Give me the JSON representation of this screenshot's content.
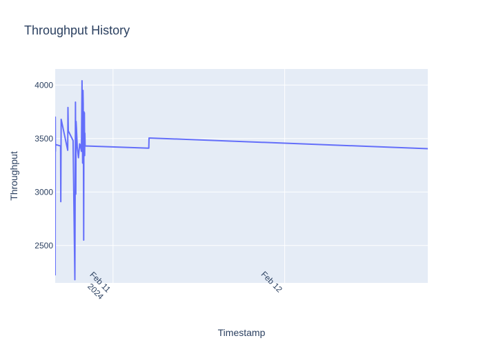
{
  "chart_data": {
    "type": "line",
    "title": "Throughput History",
    "xlabel": "Timestamp",
    "ylabel": "Throughput",
    "x_axis_type": "date",
    "xlim": [
      "2024-02-10 15:55",
      "2024-02-12 20:00"
    ],
    "ylim": [
      2150,
      4150
    ],
    "y_ticks": [
      2500,
      3000,
      3500,
      4000
    ],
    "x_ticks": [
      {
        "date": "2024-02-11 00:00",
        "label": [
          "Feb 11",
          "2024"
        ]
      },
      {
        "date": "2024-02-12 00:00",
        "label": [
          "Feb 12"
        ]
      }
    ],
    "grid": true,
    "legend": false,
    "colors": {
      "line": "#636efa",
      "plot_bg": "#e5ecf6",
      "grid": "#ffffff",
      "text": "#2a3f5f"
    },
    "series": [
      {
        "x": [
          "2024-02-10 15:55",
          "2024-02-10 15:56",
          "2024-02-10 15:57",
          "2024-02-10 15:58",
          "2024-02-10 16:00",
          "2024-02-10 16:10",
          "2024-02-10 16:40",
          "2024-02-10 16:42",
          "2024-02-10 16:45",
          "2024-02-10 17:40",
          "2024-02-10 17:42",
          "2024-02-10 17:45",
          "2024-02-10 17:50",
          "2024-02-10 18:25",
          "2024-02-10 18:40",
          "2024-02-10 18:45",
          "2024-02-10 18:48",
          "2024-02-10 18:50",
          "2024-02-10 18:53",
          "2024-02-10 18:55",
          "2024-02-10 19:00",
          "2024-02-10 19:10",
          "2024-02-10 19:20",
          "2024-02-10 19:25",
          "2024-02-10 19:35",
          "2024-02-10 19:40",
          "2024-02-10 19:45",
          "2024-02-10 19:48",
          "2024-02-10 19:50",
          "2024-02-10 19:52",
          "2024-02-10 19:54",
          "2024-02-10 19:56",
          "2024-02-10 19:58",
          "2024-02-10 20:00",
          "2024-02-10 20:02",
          "2024-02-10 20:04",
          "2024-02-10 20:06",
          "2024-02-10 20:08",
          "2024-02-10 20:10",
          "2024-02-10 20:12",
          "2024-02-10 20:14",
          "2024-02-10 20:16",
          "2024-02-10 20:18",
          "2024-02-11 05:00",
          "2024-02-11 05:02",
          "2024-02-12 20:00"
        ],
        "y": [
          2220,
          3700,
          3380,
          3450,
          3440,
          3440,
          3430,
          2910,
          3680,
          3390,
          3790,
          3570,
          3560,
          3480,
          2180,
          3840,
          2980,
          3660,
          3600,
          3550,
          3420,
          3320,
          3450,
          3440,
          3380,
          4040,
          3270,
          3950,
          3830,
          3300,
          2550,
          3750,
          3400,
          3740,
          3340,
          3550,
          3430,
          3430,
          3430,
          3430,
          3430,
          3430,
          3430,
          3410,
          3505,
          3405
        ]
      }
    ]
  }
}
